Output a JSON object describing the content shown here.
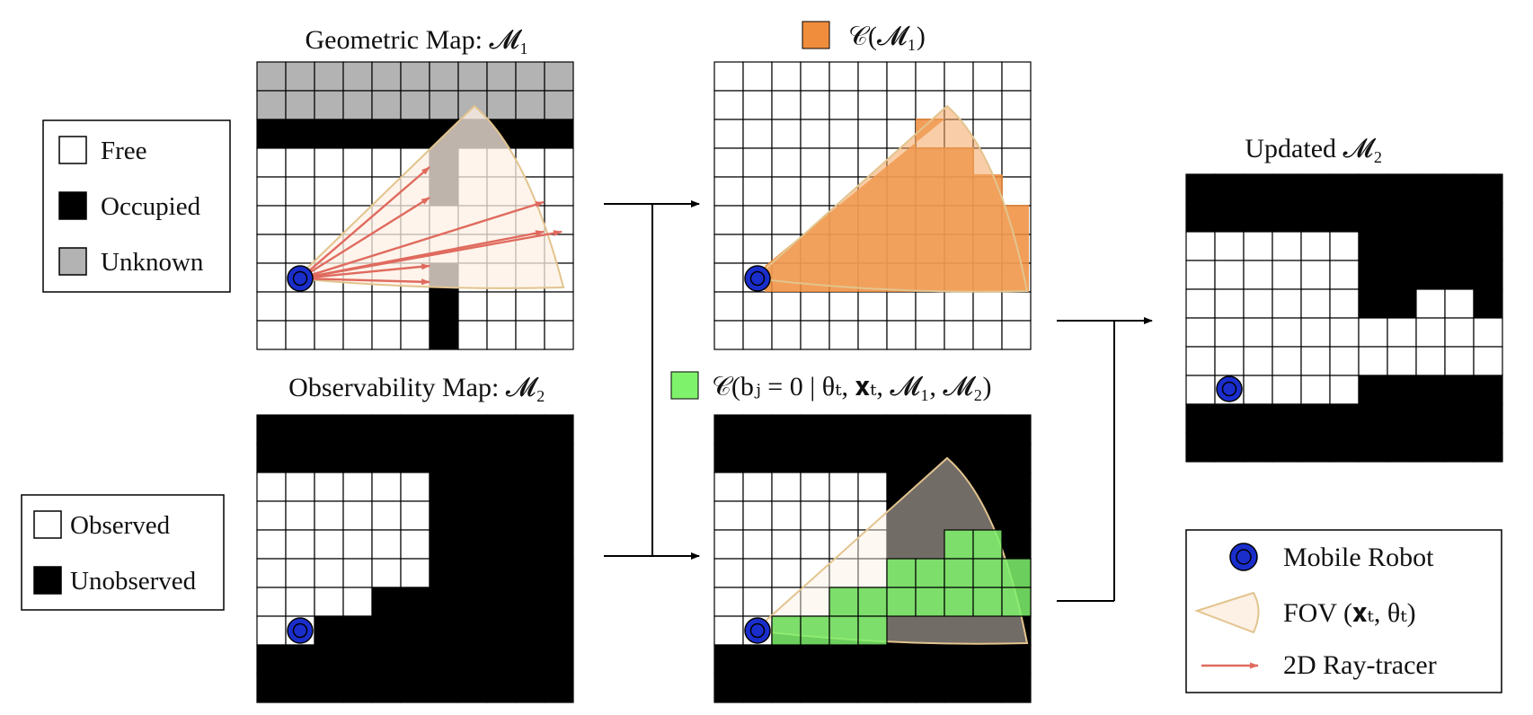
{
  "colors": {
    "free": "#ffffff",
    "occupied": "#000000",
    "unknown": "#b3b3b3",
    "grid": "#000000",
    "fov_fill": "#fdf0e4",
    "fov_stroke": "#e2c48e",
    "ray": "#e06a5e",
    "orange": "#f08d3c",
    "green": "#7ff26c",
    "robot": "#1a2ecc",
    "arrow": "#000000"
  },
  "titles": {
    "geometric_map": "Geometric Map: 𝓜₁",
    "observability_map": "Observability Map: 𝓜₂",
    "c_m1": "𝒞(𝓜₁)",
    "c_bj": "𝒞(bⱼ = 0 | θₜ, 𝐱ₜ, 𝓜₁, 𝓜₂)",
    "updated": "Updated  𝓜₂"
  },
  "legend_map": [
    {
      "label": "Free",
      "swatch": "free"
    },
    {
      "label": "Occupied",
      "swatch": "occupied"
    },
    {
      "label": "Unknown",
      "swatch": "unknown"
    }
  ],
  "legend_obs": [
    {
      "label": "Observed",
      "swatch": "free"
    },
    {
      "label": "Unobserved",
      "swatch": "occupied"
    }
  ],
  "legend_robot": [
    {
      "label": "Mobile Robot",
      "icon": "robot-icon"
    },
    {
      "label": "FOV (𝐱ₜ, θₜ)",
      "icon": "fov-icon"
    },
    {
      "label": "2D Ray-tracer",
      "icon": "ray-arrow-icon"
    }
  ],
  "grids": {
    "geometric": [
      "UUUUUUUUUUU",
      "UUUUUUUUUUU",
      "OOOOOOOOOOO",
      "FFFFFFOFFFF",
      "FFFFFFOFFFF",
      "FFFFFFFFFFF",
      "FFFFFFFFFFF",
      "FFFFFFOFFFF",
      "FFFFFFOFFFF",
      "FFFFFFOFFFF"
    ],
    "observability": [
      "OOOOOOOOOOO",
      "OOOOOOOOOOO",
      "FFFFFFOOOOO",
      "FFFFFFOOOOO",
      "FFFFFFOOOOO",
      "FFFFFFOOOOO",
      "FFFFOOOOOOO",
      "FFOOOOOOOOO",
      "OOOOOOOOOOO",
      "OOOOOOOOOOO"
    ],
    "updated": [
      "OOOOOOOOOOO",
      "OOOOOOOOOOO",
      "FFFFFFOOOOO",
      "FFFFFFOOOOO",
      "FFFFFFOOFFO",
      "FFFFFFFFFFF",
      "FFFFFFFFFFF",
      "FFFFFFOOOOO",
      "OOOOOOOOOOO",
      "OOOOOOOOOOO"
    ]
  }
}
